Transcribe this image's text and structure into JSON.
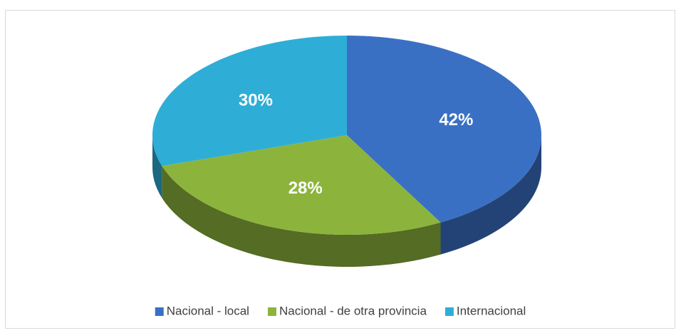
{
  "chart_data": {
    "type": "pie",
    "categories": [
      "Nacional - local",
      "Nacional - de otra provincia",
      "Internacional"
    ],
    "values": [
      42,
      28,
      30
    ],
    "value_labels": [
      "42%",
      "28%",
      "30%"
    ],
    "colors": [
      "#3a70c4",
      "#8cb43c",
      "#2eaed6"
    ],
    "legend": "bottom"
  }
}
